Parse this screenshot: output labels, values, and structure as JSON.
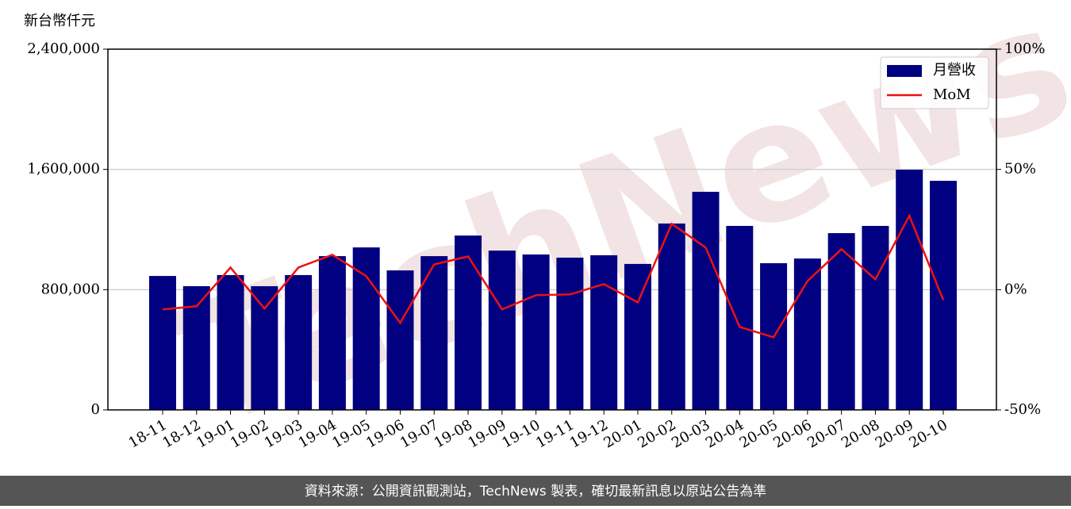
{
  "chart_data": {
    "type": "bar",
    "y_label": "新台幣仟元",
    "watermark": "TechNews",
    "source": "資料來源：公開資訊觀測站，TechNews 製表，確切最新訊息以原站公告為準",
    "categories": [
      "18-11",
      "18-12",
      "19-01",
      "19-02",
      "19-03",
      "19-04",
      "19-05",
      "19-06",
      "19-07",
      "19-08",
      "19-09",
      "19-10",
      "19-11",
      "19-12",
      "20-01",
      "20-02",
      "20-03",
      "20-04",
      "20-05",
      "20-06",
      "20-07",
      "20-08",
      "20-09",
      "20-10"
    ],
    "series": [
      {
        "name": "月營收",
        "type": "bar",
        "color": "#000080",
        "values": [
          891000,
          823000,
          897000,
          823000,
          897000,
          1023000,
          1081000,
          928000,
          1023000,
          1160000,
          1060000,
          1034000,
          1013000,
          1029000,
          971000,
          1240000,
          1451000,
          1224000,
          976000,
          1007000,
          1176000,
          1224000,
          1598000,
          1524000
        ]
      },
      {
        "name": "MoM",
        "type": "line",
        "axis": "y2",
        "color": "#ee1111",
        "values": [
          -8.2,
          -6.9,
          9.2,
          -7.9,
          9.2,
          14.5,
          5.6,
          -13.8,
          10.5,
          13.8,
          -8.2,
          -2.3,
          -2.0,
          2.3,
          -5.3,
          27.4,
          17.5,
          -15.5,
          -19.8,
          3.6,
          16.8,
          4.3,
          30.7,
          -4.3
        ]
      }
    ],
    "ylim": [
      0,
      2400000
    ],
    "yticks": [
      0,
      {
        "value": 800000,
        "label": "800,000"
      },
      {
        "value": 1600000,
        "label": "1,600,000"
      },
      {
        "value": 2400000,
        "label": "2,400,000"
      }
    ],
    "y2lim": [
      -50,
      100
    ],
    "y2ticks": [
      {
        "value": -50,
        "label": "-50%"
      },
      {
        "value": 0,
        "label": "0%"
      },
      {
        "value": 50,
        "label": "50%"
      },
      {
        "value": 100,
        "label": "100%"
      }
    ],
    "grid": true,
    "legend": "upper right"
  }
}
